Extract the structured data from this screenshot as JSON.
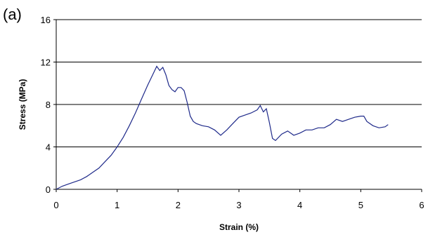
{
  "panel_label": "(a)",
  "chart_data": {
    "type": "line",
    "title": "",
    "xlabel": "Strain (%)",
    "ylabel": "Stress (MPa)",
    "xlim": [
      0,
      6
    ],
    "ylim": [
      0,
      16
    ],
    "xticks": [
      "0",
      "1",
      "2",
      "3",
      "4",
      "5",
      "6"
    ],
    "yticks": [
      "0",
      "4",
      "8",
      "12",
      "16"
    ],
    "grid": "horizontal major gridlines",
    "legend": "none",
    "line_color": "#1f2a8a",
    "series": [
      {
        "x": [
          0,
          0.1,
          0.2,
          0.3,
          0.4,
          0.5,
          0.6,
          0.7,
          0.8,
          0.9,
          1.0,
          1.1,
          1.2,
          1.3,
          1.4,
          1.5,
          1.6,
          1.65,
          1.7,
          1.75,
          1.8,
          1.85,
          1.9,
          1.95,
          2.0,
          2.05,
          2.1,
          2.15,
          2.2,
          2.25,
          2.3,
          2.4,
          2.5,
          2.6,
          2.7,
          2.8,
          2.9,
          3.0,
          3.1,
          3.2,
          3.3,
          3.35,
          3.4,
          3.45,
          3.5,
          3.55,
          3.6,
          3.7,
          3.8,
          3.9,
          4.0,
          4.1,
          4.2,
          4.3,
          4.4,
          4.5,
          4.6,
          4.7,
          4.8,
          4.9,
          5.0,
          5.05,
          5.1,
          5.2,
          5.3,
          5.4,
          5.45
        ],
        "y": [
          0,
          0.3,
          0.5,
          0.7,
          0.9,
          1.2,
          1.6,
          2.0,
          2.6,
          3.2,
          4.0,
          4.9,
          6.0,
          7.2,
          8.5,
          9.8,
          11.0,
          11.6,
          11.2,
          11.5,
          10.8,
          9.8,
          9.4,
          9.2,
          9.6,
          9.6,
          9.3,
          8.2,
          6.9,
          6.4,
          6.2,
          6.0,
          5.9,
          5.6,
          5.1,
          5.6,
          6.2,
          6.8,
          7.0,
          7.2,
          7.5,
          7.9,
          7.3,
          7.6,
          6.3,
          4.8,
          4.6,
          5.2,
          5.5,
          5.1,
          5.3,
          5.6,
          5.6,
          5.8,
          5.8,
          6.1,
          6.6,
          6.4,
          6.6,
          6.8,
          6.9,
          6.9,
          6.4,
          6.0,
          5.8,
          5.9,
          6.1
        ]
      }
    ]
  }
}
